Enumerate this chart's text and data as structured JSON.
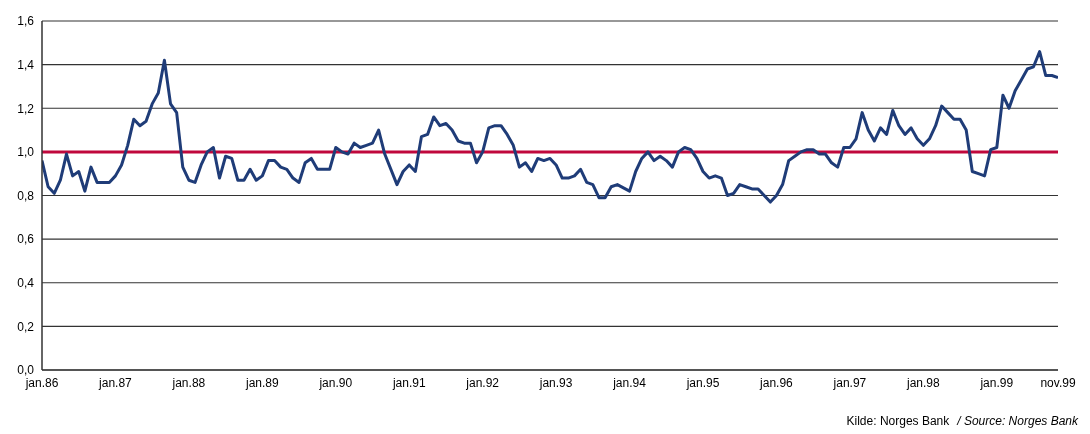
{
  "chart_data": {
    "type": "line",
    "x": [
      "1986-01",
      "1986-02",
      "1986-03",
      "1986-04",
      "1986-05",
      "1986-06",
      "1986-07",
      "1986-08",
      "1986-09",
      "1986-10",
      "1986-11",
      "1986-12",
      "1987-01",
      "1987-02",
      "1987-03",
      "1987-04",
      "1987-05",
      "1987-06",
      "1987-07",
      "1987-08",
      "1987-09",
      "1987-10",
      "1987-11",
      "1987-12",
      "1988-01",
      "1988-02",
      "1988-03",
      "1988-04",
      "1988-05",
      "1988-06",
      "1988-07",
      "1988-08",
      "1988-09",
      "1988-10",
      "1988-11",
      "1988-12",
      "1989-01",
      "1989-02",
      "1989-03",
      "1989-04",
      "1989-05",
      "1989-06",
      "1989-07",
      "1989-08",
      "1989-09",
      "1989-10",
      "1989-11",
      "1989-12",
      "1990-01",
      "1990-02",
      "1990-03",
      "1990-04",
      "1990-05",
      "1990-06",
      "1990-07",
      "1990-08",
      "1990-09",
      "1990-11",
      "1990-12",
      "1991-01",
      "1991-02",
      "1991-03",
      "1991-04",
      "1991-05",
      "1991-06",
      "1991-07",
      "1991-08",
      "1991-09",
      "1991-10",
      "1991-11",
      "1991-12",
      "1992-01",
      "1992-02",
      "1992-03",
      "1992-04",
      "1992-05",
      "1992-06",
      "1992-07",
      "1992-08",
      "1992-09",
      "1992-10",
      "1992-11",
      "1992-12",
      "1993-01",
      "1993-02",
      "1993-03",
      "1993-04",
      "1993-05",
      "1993-06",
      "1993-07",
      "1993-08",
      "1993-09",
      "1993-10",
      "1993-11",
      "1994-01",
      "1994-02",
      "1994-03",
      "1994-04",
      "1994-05",
      "1994-06",
      "1994-07",
      "1994-08",
      "1994-09",
      "1994-10",
      "1994-11",
      "1994-12",
      "1995-01",
      "1995-02",
      "1995-03",
      "1995-04",
      "1995-05",
      "1995-06",
      "1995-07",
      "1995-08",
      "1995-09",
      "1995-10",
      "1995-11",
      "1995-12",
      "1996-01",
      "1996-02",
      "1996-03",
      "1996-04",
      "1996-05",
      "1996-06",
      "1996-07",
      "1996-08",
      "1996-09",
      "1996-10",
      "1996-11",
      "1996-12",
      "1997-01",
      "1997-02",
      "1997-03",
      "1997-04",
      "1997-05",
      "1997-06",
      "1997-07",
      "1997-08",
      "1997-09",
      "1997-10",
      "1997-11",
      "1997-12",
      "1998-01",
      "1998-02",
      "1998-03",
      "1998-04",
      "1998-05",
      "1998-06",
      "1998-07",
      "1998-08",
      "1998-09",
      "1998-10",
      "1998-11",
      "1998-12",
      "1999-01",
      "1999-02",
      "1999-03",
      "1999-04",
      "1999-05",
      "1999-06",
      "1999-07",
      "1999-08",
      "1999-09",
      "1999-10",
      "1999-11"
    ],
    "series": [
      {
        "color": "#1f3c78",
        "values": [
          0.96,
          0.84,
          0.81,
          0.87,
          0.99,
          0.89,
          0.91,
          0.82,
          0.93,
          0.86,
          0.86,
          0.86,
          0.89,
          0.94,
          1.03,
          1.15,
          1.12,
          1.14,
          1.22,
          1.27,
          1.42,
          1.22,
          1.18,
          0.93,
          0.87,
          0.86,
          0.94,
          1.0,
          1.02,
          0.88,
          0.98,
          0.97,
          0.87,
          0.87,
          0.92,
          0.87,
          0.89,
          0.96,
          0.96,
          0.93,
          0.92,
          0.88,
          0.86,
          0.95,
          0.97,
          0.92,
          0.92,
          0.92,
          1.02,
          1.0,
          0.99,
          1.04,
          1.02,
          1.03,
          1.04,
          1.1,
          0.99,
          0.85,
          0.91,
          0.94,
          0.91,
          1.07,
          1.08,
          1.16,
          1.12,
          1.13,
          1.1,
          1.05,
          1.04,
          1.04,
          0.95,
          1.0,
          1.11,
          1.12,
          1.12,
          1.08,
          1.03,
          0.93,
          0.95,
          0.91,
          0.97,
          0.96,
          0.97,
          0.94,
          0.88,
          0.88,
          0.89,
          0.92,
          0.86,
          0.85,
          0.79,
          0.79,
          0.84,
          0.85,
          0.82,
          0.91,
          0.97,
          1.0,
          0.96,
          0.98,
          0.96,
          0.93,
          1.0,
          1.02,
          1.01,
          0.97,
          0.91,
          0.88,
          0.89,
          0.88,
          0.8,
          0.81,
          0.85,
          0.84,
          0.83,
          0.83,
          0.8,
          0.77,
          0.8,
          0.85,
          0.96,
          0.98,
          1.0,
          1.01,
          1.01,
          0.99,
          0.99,
          0.95,
          0.93,
          1.02,
          1.02,
          1.06,
          1.18,
          1.1,
          1.05,
          1.11,
          1.08,
          1.19,
          1.12,
          1.08,
          1.11,
          1.06,
          1.03,
          1.06,
          1.12,
          1.21,
          1.18,
          1.15,
          1.15,
          1.1,
          0.91,
          0.9,
          0.89,
          1.01,
          1.02,
          1.26,
          1.2,
          1.28,
          1.33,
          1.38,
          1.39,
          1.46,
          1.35,
          1.35,
          1.34
        ]
      }
    ],
    "xlim": [
      "1986-01",
      "1999-11"
    ],
    "xticks": [
      {
        "value": "1986-01",
        "label": "jan.86"
      },
      {
        "value": "1987-01",
        "label": "jan.87"
      },
      {
        "value": "1988-01",
        "label": "jan.88"
      },
      {
        "value": "1989-01",
        "label": "jan.89"
      },
      {
        "value": "1990-01",
        "label": "jan.90"
      },
      {
        "value": "1991-01",
        "label": "jan.91"
      },
      {
        "value": "1992-01",
        "label": "jan.92"
      },
      {
        "value": "1993-01",
        "label": "jan.93"
      },
      {
        "value": "1994-01",
        "label": "jan.94"
      },
      {
        "value": "1995-01",
        "label": "jan.95"
      },
      {
        "value": "1996-01",
        "label": "jan.96"
      },
      {
        "value": "1997-01",
        "label": "jan.97"
      },
      {
        "value": "1998-01",
        "label": "jan.98"
      },
      {
        "value": "1999-01",
        "label": "jan.99"
      },
      {
        "value": "1999-11",
        "label": "nov.99"
      }
    ],
    "ylim": [
      0,
      1.6
    ],
    "yticks": [
      {
        "value": 0,
        "label": "0,0"
      },
      {
        "value": 0.2,
        "label": "0,2"
      },
      {
        "value": 0.4,
        "label": "0,4"
      },
      {
        "value": 0.6,
        "label": "0,6"
      },
      {
        "value": 0.8,
        "label": "0,8"
      },
      {
        "value": 1.0,
        "label": "1,0"
      },
      {
        "value": 1.2,
        "label": "1,2"
      },
      {
        "value": 1.4,
        "label": "1,4"
      },
      {
        "value": 1.6,
        "label": "1,6"
      }
    ],
    "grid": "y",
    "ref_lines": [
      {
        "axis": "y",
        "value": 1.0,
        "color": "#c0083c"
      }
    ],
    "annotations": [
      "Kilde:  Norges Bank",
      "/ Source: Norges Bank"
    ]
  }
}
